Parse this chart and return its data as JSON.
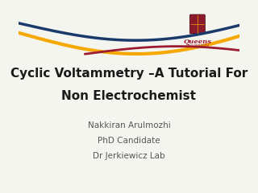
{
  "bg_color": "#F5F5F0",
  "title_line1": "Cyclic Voltammetry –A Tutorial For",
  "title_line2": "Non Electrochemist",
  "title_color": "#1a1a1a",
  "title_fontsize": 11,
  "title_fontweight": "bold",
  "subtitle_lines": [
    "Nakkiran Arulmozhi",
    "PhD Candidate",
    "Dr Jerkiewicz Lab"
  ],
  "subtitle_color": "#555555",
  "subtitle_fontsize": 7.5,
  "wave_navy_color": "#1a3a6b",
  "wave_gold_color": "#F5A800",
  "wave_red_color": "#9B1B30",
  "queens_text": "Queens",
  "queens_color": "#9B1B30",
  "logo_shield_color": "#8B1A2B"
}
